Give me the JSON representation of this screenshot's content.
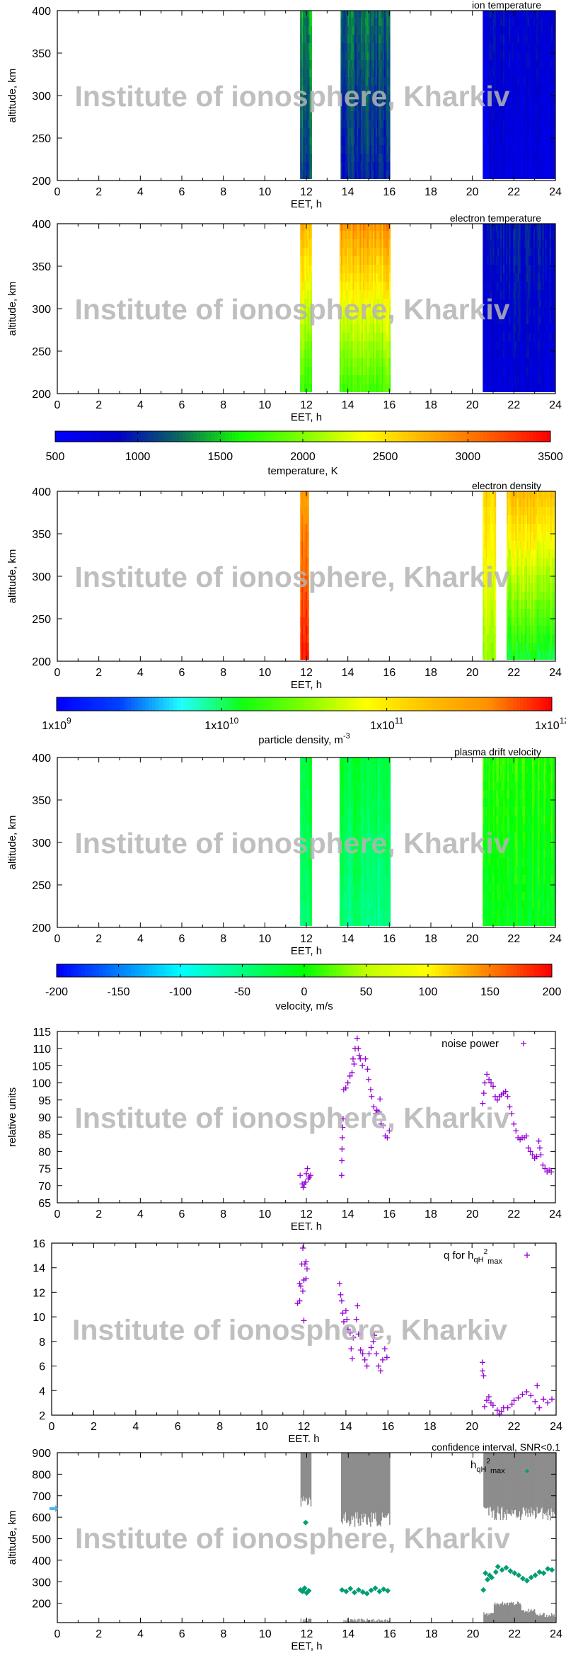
{
  "watermark": "Institute of ionosphere, Kharkiv",
  "colors": {
    "noise": "#9400d3",
    "q": "#9400d3",
    "hmax": "#009e73",
    "confidence": "#8c8c8c",
    "marker_left": "#56b4e9"
  },
  "palettes": {
    "temperature": [
      "#0000ff",
      "#0000c8",
      "#0a6a5a",
      "#14ff00",
      "#7fff00",
      "#ffff00",
      "#ffb000",
      "#ff6000",
      "#ff0000"
    ],
    "density": [
      "#0000ff",
      "#0040ff",
      "#20ffff",
      "#10ff10",
      "#80ff00",
      "#ffff00",
      "#ffc000",
      "#ff9000",
      "#ff0000"
    ],
    "velocity": [
      "#0000ff",
      "#0080ff",
      "#00ffff",
      "#00ff80",
      "#00ff00",
      "#c0ff00",
      "#ffff00",
      "#ff8000",
      "#ff0000"
    ]
  },
  "colorbars": [
    {
      "palette": "temperature",
      "scale": "linear",
      "range": [
        500,
        3500
      ],
      "ticks": [
        "500",
        "1000",
        "1500",
        "2000",
        "2500",
        "3000",
        "3500"
      ],
      "label": "temperature, K"
    },
    {
      "palette": "density",
      "scale": "log",
      "range": [
        1000000000.0,
        1000000000000.0
      ],
      "ticks": [
        {
          "base": "1x10",
          "exp": "9"
        },
        {
          "base": "1x10",
          "exp": "10"
        },
        {
          "base": "1x10",
          "exp": "11"
        },
        {
          "base": "1x10",
          "exp": "12"
        }
      ],
      "label_base": "particle density, m",
      "label_exp": "-3"
    },
    {
      "palette": "velocity",
      "scale": "linear",
      "range": [
        -200,
        200
      ],
      "ticks": [
        "-200",
        "-150",
        "-100",
        "-50",
        "0",
        "50",
        "100",
        "150",
        "200"
      ],
      "label": "velocity, m/s"
    }
  ],
  "chart_data": [
    {
      "type": "heatmap",
      "title": "ion temperature",
      "xlabel": "EET, h",
      "ylabel": "altitude, km",
      "xlim": [
        0,
        24
      ],
      "ylim": [
        200,
        400
      ],
      "yticks": [
        200,
        250,
        300,
        350,
        400
      ],
      "palette": "temperature",
      "crange": [
        500,
        3500
      ],
      "cscale": "linear",
      "segments": [
        {
          "t": [
            11.7,
            12.2
          ],
          "bottom": 1150,
          "top": 1400
        },
        {
          "t": [
            13.65,
            16.0
          ],
          "bottom": 1000,
          "top": 1250
        },
        {
          "t": [
            20.5,
            23.95
          ],
          "bottom": 700,
          "top": 850
        }
      ]
    },
    {
      "type": "heatmap",
      "title": "electron temperature",
      "xlabel": "EET, h",
      "ylabel": "altitude, km",
      "xlim": [
        0,
        24
      ],
      "ylim": [
        200,
        400
      ],
      "yticks": [
        200,
        250,
        300,
        350,
        400
      ],
      "palette": "temperature",
      "crange": [
        500,
        3500
      ],
      "cscale": "linear",
      "segments": [
        {
          "t": [
            11.7,
            12.2
          ],
          "bottom": 1750,
          "top": 2750
        },
        {
          "t": [
            13.6,
            16.0
          ],
          "bottom": 1800,
          "top": 2900
        },
        {
          "t": [
            20.5,
            23.95
          ],
          "bottom": 750,
          "top": 950
        }
      ]
    },
    {
      "type": "heatmap",
      "title": "electron density",
      "xlabel": "EET, h",
      "ylabel": "altitude, km",
      "xlim": [
        0,
        24
      ],
      "ylim": [
        200,
        400
      ],
      "yticks": [
        200,
        250,
        300,
        350,
        400
      ],
      "palette": "density",
      "crange": [
        1000000000.0,
        1000000000000.0
      ],
      "cscale": "log",
      "segments": [
        {
          "t": [
            11.7,
            12.1
          ],
          "bottom": 800000000000.0,
          "top": 300000000000.0
        },
        {
          "t": [
            20.5,
            21.1
          ],
          "bottom": 40000000000.0,
          "top": 150000000000.0
        },
        {
          "t": [
            21.65,
            23.95
          ],
          "bottom": 12000000000.0,
          "top": 200000000000.0
        }
      ]
    },
    {
      "type": "heatmap",
      "title": "plasma drift velocity",
      "xlabel": "EET, h",
      "ylabel": "altitude, km",
      "xlim": [
        0,
        24
      ],
      "ylim": [
        200,
        400
      ],
      "yticks": [
        200,
        250,
        300,
        350,
        400
      ],
      "palette": "velocity",
      "crange": [
        -200,
        200
      ],
      "cscale": "linear",
      "segments": [
        {
          "t": [
            11.7,
            12.2
          ],
          "bottom": -40,
          "top": -20
        },
        {
          "t": [
            13.6,
            16.0
          ],
          "bottom": -50,
          "top": -20
        },
        {
          "t": [
            20.5,
            23.95
          ],
          "bottom": -10,
          "top": 10
        }
      ]
    },
    {
      "type": "scatter",
      "title": "",
      "legend": "noise power",
      "xlabel": "EET. h",
      "ylabel": "relative units",
      "xlim": [
        0,
        24
      ],
      "ylim": [
        65,
        115
      ],
      "yticks": [
        65,
        70,
        75,
        80,
        85,
        90,
        95,
        100,
        105,
        110,
        115
      ],
      "marker": "+",
      "color_key": "noise",
      "points": [
        [
          11.7,
          73
        ],
        [
          11.8,
          70.5
        ],
        [
          11.85,
          69.5
        ],
        [
          11.9,
          70.5
        ],
        [
          11.95,
          71
        ],
        [
          12.0,
          73.5
        ],
        [
          12.05,
          75
        ],
        [
          12.1,
          72
        ],
        [
          12.15,
          72.5
        ],
        [
          12.2,
          73
        ],
        [
          13.7,
          73
        ],
        [
          13.71,
          77.3
        ],
        [
          13.72,
          80.7
        ],
        [
          13.73,
          84
        ],
        [
          13.75,
          87
        ],
        [
          13.77,
          89.5
        ],
        [
          13.8,
          98
        ],
        [
          13.9,
          98.5
        ],
        [
          14.0,
          100
        ],
        [
          14.1,
          102
        ],
        [
          14.2,
          103
        ],
        [
          14.25,
          107
        ],
        [
          14.3,
          105.5
        ],
        [
          14.35,
          110
        ],
        [
          14.45,
          113
        ],
        [
          14.5,
          110
        ],
        [
          14.55,
          108
        ],
        [
          14.6,
          107
        ],
        [
          14.7,
          105
        ],
        [
          14.85,
          107
        ],
        [
          14.95,
          104
        ],
        [
          15.0,
          101
        ],
        [
          15.1,
          98
        ],
        [
          15.15,
          96
        ],
        [
          15.25,
          93
        ],
        [
          15.35,
          91
        ],
        [
          15.4,
          92
        ],
        [
          15.5,
          91.5
        ],
        [
          15.55,
          95.3
        ],
        [
          15.6,
          88
        ],
        [
          15.7,
          87.5
        ],
        [
          15.8,
          84.5
        ],
        [
          15.9,
          84
        ],
        [
          16.0,
          86
        ],
        [
          20.5,
          94
        ],
        [
          20.55,
          97
        ],
        [
          20.6,
          100
        ],
        [
          20.7,
          102.5
        ],
        [
          20.8,
          101
        ],
        [
          20.9,
          100
        ],
        [
          21.0,
          99
        ],
        [
          21.1,
          96
        ],
        [
          21.2,
          95
        ],
        [
          21.3,
          96
        ],
        [
          21.4,
          96.5
        ],
        [
          21.5,
          97
        ],
        [
          21.6,
          97.5
        ],
        [
          21.7,
          96
        ],
        [
          21.8,
          93
        ],
        [
          21.9,
          91
        ],
        [
          22.0,
          88
        ],
        [
          22.1,
          86
        ],
        [
          22.2,
          84
        ],
        [
          22.3,
          83.5
        ],
        [
          22.4,
          84
        ],
        [
          22.5,
          84
        ],
        [
          22.6,
          84.5
        ],
        [
          22.7,
          81
        ],
        [
          22.8,
          80
        ],
        [
          22.9,
          79
        ],
        [
          23.0,
          78
        ],
        [
          23.1,
          78.5
        ],
        [
          23.2,
          83
        ],
        [
          23.25,
          81
        ],
        [
          23.3,
          79
        ],
        [
          23.4,
          76
        ],
        [
          23.5,
          75
        ],
        [
          23.6,
          74
        ],
        [
          23.7,
          74.5
        ],
        [
          23.8,
          74
        ]
      ]
    },
    {
      "type": "scatter",
      "title": "",
      "legend_base": "q for h",
      "legend_sub": "qH",
      "legend_sup": "2",
      "legend_sub2": "max",
      "xlabel": "EET. h",
      "ylabel": "",
      "xlim": [
        0,
        24
      ],
      "ylim": [
        2,
        16
      ],
      "yticks": [
        2,
        4,
        6,
        8,
        10,
        12,
        14,
        16
      ],
      "marker": "+",
      "color_key": "q",
      "points": [
        [
          11.7,
          11.1
        ],
        [
          11.8,
          11.3
        ],
        [
          11.8,
          12.7
        ],
        [
          11.85,
          12.5
        ],
        [
          11.9,
          14.3
        ],
        [
          11.95,
          15.6
        ],
        [
          12.0,
          13
        ],
        [
          12.05,
          14.3
        ],
        [
          12.1,
          14.5
        ],
        [
          12.15,
          13.9
        ],
        [
          12.0,
          9.7
        ],
        [
          11.95,
          12.1
        ],
        [
          12.1,
          13.1
        ],
        [
          13.7,
          12.7
        ],
        [
          13.75,
          11.8
        ],
        [
          13.8,
          11.3
        ],
        [
          13.85,
          10.3
        ],
        [
          13.9,
          9.6
        ],
        [
          14.0,
          10.5
        ],
        [
          14.05,
          9.8
        ],
        [
          14.1,
          9.0
        ],
        [
          14.2,
          8.7
        ],
        [
          14.25,
          7.4
        ],
        [
          14.3,
          6.6
        ],
        [
          14.35,
          8.3
        ],
        [
          14.5,
          9.8
        ],
        [
          14.55,
          10.9
        ],
        [
          14.6,
          8.6
        ],
        [
          14.7,
          7.3
        ],
        [
          14.8,
          7.0
        ],
        [
          14.9,
          6.5
        ],
        [
          15.0,
          6.0
        ],
        [
          15.1,
          7.0
        ],
        [
          15.2,
          7.5
        ],
        [
          15.3,
          8.0
        ],
        [
          15.35,
          8.5
        ],
        [
          15.45,
          7.0
        ],
        [
          15.55,
          6.0
        ],
        [
          15.65,
          5.6
        ],
        [
          15.75,
          6.5
        ],
        [
          15.85,
          7.4
        ],
        [
          15.95,
          6.7
        ],
        [
          20.5,
          6.3
        ],
        [
          20.5,
          5.6
        ],
        [
          20.55,
          5.2
        ],
        [
          20.6,
          2.7
        ],
        [
          20.7,
          3.2
        ],
        [
          20.8,
          3.5
        ],
        [
          20.9,
          3.0
        ],
        [
          21.0,
          2.8
        ],
        [
          21.2,
          2.4
        ],
        [
          21.3,
          2.1
        ],
        [
          21.4,
          2.3
        ],
        [
          21.5,
          2.6
        ],
        [
          21.7,
          2.6
        ],
        [
          21.9,
          2.9
        ],
        [
          22.0,
          3.2
        ],
        [
          22.2,
          3.4
        ],
        [
          22.4,
          3.7
        ],
        [
          22.6,
          3.9
        ],
        [
          22.8,
          3.6
        ],
        [
          23.0,
          3.1
        ],
        [
          23.1,
          4.4
        ],
        [
          23.2,
          2.6
        ],
        [
          23.4,
          3.3
        ],
        [
          23.6,
          3.0
        ],
        [
          23.8,
          3.3
        ]
      ]
    },
    {
      "type": "scatter",
      "title": "confidence interval, SNR<0.1",
      "legend_base": "h",
      "legend_sub": "qH",
      "legend_sup": "2",
      "legend_sub2": "max",
      "xlabel": "EET, h",
      "ylabel": "altitude, km",
      "xlim": [
        0,
        24
      ],
      "ylim": [
        110,
        900
      ],
      "yticks": [
        200,
        300,
        400,
        500,
        600,
        700,
        800,
        900
      ],
      "marker": "diamond",
      "color_key": "hmax",
      "confidence_upper": [
        {
          "t": [
            11.7,
            12.2
          ],
          "low": 680
        },
        {
          "t": [
            13.65,
            16.0
          ],
          "low": 590
        },
        {
          "t": [
            20.5,
            23.95
          ],
          "low": 620
        }
      ],
      "confidence_lower": [
        {
          "t": [
            11.7,
            12.2
          ],
          "high": 120
        },
        {
          "t": [
            13.65,
            16.0
          ],
          "high": 120
        },
        {
          "t": [
            20.5,
            21.0
          ],
          "high": 150
        },
        {
          "t": [
            21.0,
            22.3
          ],
          "high": 200
        },
        {
          "t": [
            22.3,
            23.0
          ],
          "high": 165
        },
        {
          "t": [
            23.0,
            23.95
          ],
          "high": 145
        }
      ],
      "points": [
        [
          11.95,
          575
        ],
        [
          11.7,
          262
        ],
        [
          11.8,
          255
        ],
        [
          11.9,
          270
        ],
        [
          12.0,
          248
        ],
        [
          12.1,
          258
        ],
        [
          13.7,
          262
        ],
        [
          13.9,
          255
        ],
        [
          14.1,
          268
        ],
        [
          14.3,
          250
        ],
        [
          14.5,
          262
        ],
        [
          14.7,
          252
        ],
        [
          14.9,
          245
        ],
        [
          15.1,
          260
        ],
        [
          15.3,
          270
        ],
        [
          15.5,
          255
        ],
        [
          15.7,
          265
        ],
        [
          15.9,
          258
        ],
        [
          20.5,
          262
        ],
        [
          20.6,
          340
        ],
        [
          20.7,
          310
        ],
        [
          20.8,
          330
        ],
        [
          20.9,
          320
        ],
        [
          21.1,
          345
        ],
        [
          21.2,
          370
        ],
        [
          21.4,
          355
        ],
        [
          21.6,
          365
        ],
        [
          21.8,
          350
        ],
        [
          22.0,
          340
        ],
        [
          22.2,
          330
        ],
        [
          22.4,
          315
        ],
        [
          22.6,
          305
        ],
        [
          22.8,
          320
        ],
        [
          23.0,
          330
        ],
        [
          23.2,
          345
        ],
        [
          23.4,
          340
        ],
        [
          23.6,
          360
        ],
        [
          23.8,
          355
        ]
      ]
    }
  ]
}
